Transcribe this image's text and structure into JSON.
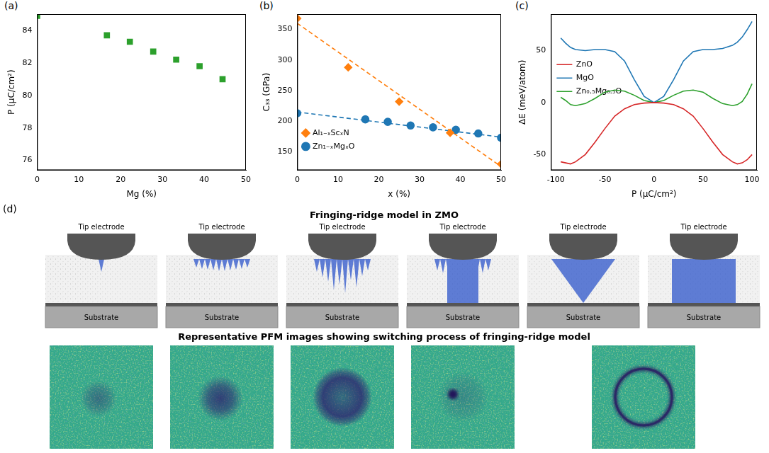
{
  "chart_data": [
    {
      "panel": "(a)",
      "type": "scatter",
      "x_label": "Mg (%)",
      "y_label": "P (μC/cm²)",
      "xlim": [
        0,
        50
      ],
      "xticks": [
        0,
        10,
        20,
        30,
        40,
        50
      ],
      "ylim": [
        75.4,
        85
      ],
      "yticks": [
        76,
        78,
        80,
        82,
        84
      ],
      "grid": false,
      "series": [
        {
          "color": "#2ca02c",
          "marker": "square",
          "x": [
            0,
            16.7,
            22.2,
            27.8,
            33.3,
            38.9,
            44.4
          ],
          "values": [
            84.9,
            83.7,
            83.3,
            82.7,
            82.2,
            81.8,
            81.0
          ]
        }
      ]
    },
    {
      "panel": "(b)",
      "type": "scatter",
      "x_label": "x (%)",
      "y_label": "C₃₃ (GPa)",
      "xlim": [
        0,
        50
      ],
      "xticks": [
        0,
        10,
        20,
        30,
        40,
        50
      ],
      "ylim": [
        120,
        375
      ],
      "yticks": [
        150,
        200,
        250,
        300,
        350
      ],
      "grid": false,
      "legend": "upper right",
      "series": [
        {
          "name": "Al₁₋ₓScₓN",
          "color": "#ff7f0e",
          "marker": "diamond",
          "x": [
            0,
            12.5,
            25,
            37.5,
            50
          ],
          "values": [
            368,
            288,
            232,
            181,
            130
          ],
          "fit": {
            "x": [
              0,
              50
            ],
            "values": [
              360,
              126
            ],
            "line_style": "dashed"
          }
        },
        {
          "name": "Zn₁₋ₓMgₓO",
          "color": "#1f77b4",
          "marker": "circle",
          "x": [
            0,
            16.7,
            22.2,
            27.8,
            33.3,
            38.9,
            44.4,
            50
          ],
          "values": [
            213,
            203,
            199,
            193,
            190,
            186,
            180,
            173
          ],
          "fit": {
            "x": [
              0,
              50
            ],
            "values": [
              215,
              174
            ],
            "line_style": "dashed"
          }
        }
      ]
    },
    {
      "panel": "(c)",
      "type": "line",
      "x_label": "P (μC/cm²)",
      "y_label": "ΔE (meV/atom)",
      "xlim": [
        -105,
        105
      ],
      "xticks": [
        -100,
        -50,
        0,
        50,
        100
      ],
      "ylim": [
        -65,
        85
      ],
      "yticks": [
        -50,
        0,
        50
      ],
      "grid": false,
      "legend": "upper center",
      "x": [
        -95,
        -90,
        -85,
        -80,
        -70,
        -60,
        -50,
        -40,
        -30,
        -20,
        -10,
        0,
        10,
        20,
        30,
        40,
        50,
        60,
        70,
        80,
        85,
        90,
        95,
        100
      ],
      "series": [
        {
          "name": "ZnO",
          "color": "#d62728",
          "values": [
            -57,
            -58,
            -59,
            -57,
            -50,
            -38,
            -25,
            -13,
            -6,
            -2,
            -0.5,
            0,
            -0.5,
            -2,
            -6,
            -13,
            -25,
            -38,
            -50,
            -57,
            -59,
            -58,
            -55,
            -50
          ]
        },
        {
          "name": "MgO",
          "color": "#1f77b4",
          "values": [
            62,
            57,
            53,
            51,
            50,
            51,
            51,
            49,
            40,
            22,
            6,
            0,
            6,
            22,
            40,
            49,
            51,
            51,
            52,
            55,
            58,
            63,
            70,
            78
          ]
        },
        {
          "name": "Zn₀.₅Mg₀.₅O",
          "color": "#2ca02c",
          "values": [
            5,
            2,
            -2,
            -3,
            -1,
            4,
            10,
            12,
            11,
            7,
            2,
            0,
            2,
            7,
            11,
            12,
            10,
            4,
            -1,
            -3,
            -2,
            1,
            8,
            18
          ]
        }
      ]
    }
  ],
  "diagram": {
    "panel": "(d)",
    "title": "Fringing-ridge model in ZMO",
    "stages": [
      {
        "tip": "Tip electrode",
        "substrate": "Substrate"
      },
      {
        "tip": "Tip electrode",
        "substrate": "Substrate"
      },
      {
        "tip": "Tip electrode",
        "substrate": "Substrate"
      },
      {
        "tip": "Tip electrode",
        "substrate": "Substrate"
      },
      {
        "tip": "Tip electrode",
        "substrate": "Substrate"
      },
      {
        "tip": "Tip electrode",
        "substrate": "Substrate"
      }
    ],
    "images_title": "Representative PFM images showing switching process of fringing-ridge model",
    "images": 5
  }
}
